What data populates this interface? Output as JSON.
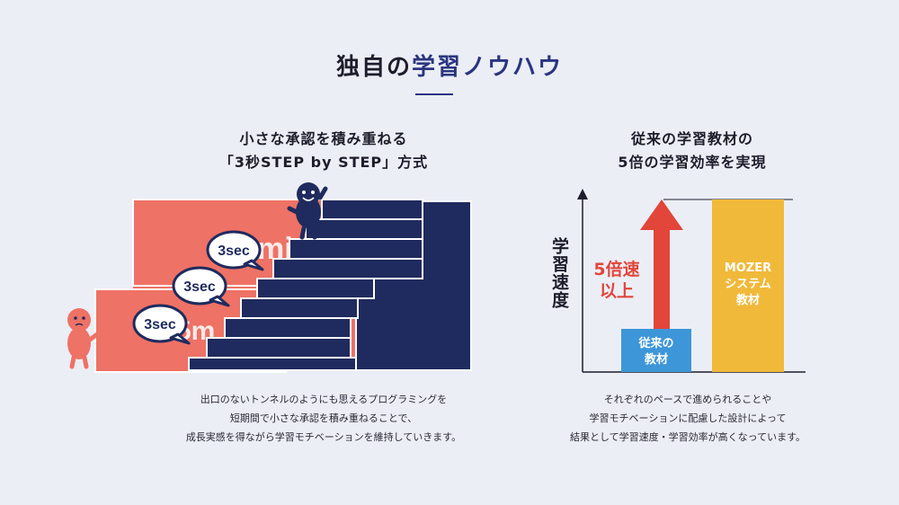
{
  "header": {
    "title_prefix": "独自の",
    "title_accent": "学習ノウハウ"
  },
  "left": {
    "heading_line1": "小さな承認を積み重ねる",
    "heading_line2": "「3秒STEP by STEP」方式",
    "bubbles": [
      "3sec",
      "3sec",
      "3sec"
    ],
    "description": [
      "出口のないトンネルのようにも思えるプログラミングを",
      "短期間で小さな承認を積み重ねることで、",
      "成長実感を得ながら学習モチベーションを維持していきます。"
    ]
  },
  "right": {
    "heading_line1": "従来の学習教材の",
    "heading_line2": "5倍の学習効率を実現",
    "y_axis_label": "学習速度",
    "arrow_label": [
      "5倍速",
      "以上"
    ],
    "bar_small": [
      "従来の",
      "教材"
    ],
    "bar_large": [
      "MOZER",
      "システム",
      "教材"
    ],
    "description": [
      "それぞれのペースで進められることや",
      "学習モチベーションに配慮した設計によって",
      "結果として学習速度・学習効率が高くなっています。"
    ]
  },
  "colors": {
    "accent": "#2a3580",
    "coral": "#ee7265",
    "navy": "#1f2b5e",
    "arrow_red": "#e2453a",
    "bar_blue": "#3d96d8",
    "bar_yellow": "#f0b93a"
  }
}
